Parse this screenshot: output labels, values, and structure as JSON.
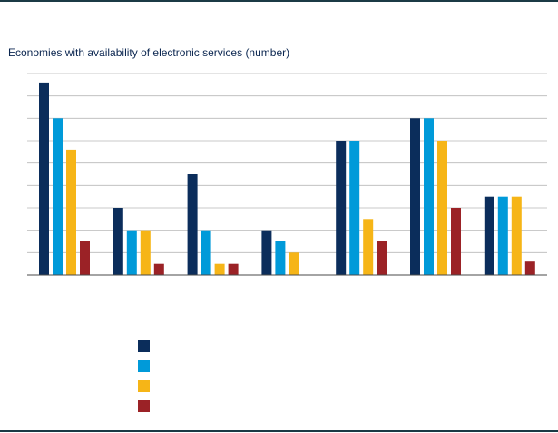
{
  "chart_data": {
    "type": "bar",
    "title": "Economies with availability of electronic services (number)",
    "xlabel": "",
    "ylabel": "",
    "ylim": [
      0,
      90
    ],
    "grid": true,
    "categories": [
      "",
      "",
      "",
      "",
      "",
      "",
      ""
    ],
    "series": [
      {
        "color": "#0b2d5b",
        "values": [
          86,
          30,
          45,
          20,
          60,
          70,
          35
        ]
      },
      {
        "color": "#009ad9",
        "values": [
          70,
          20,
          20,
          15,
          60,
          70,
          35
        ]
      },
      {
        "color": "#f6b517",
        "values": [
          56,
          20,
          5,
          10,
          25,
          60,
          35
        ]
      },
      {
        "color": "#9b2226",
        "values": [
          15,
          5,
          5,
          0,
          15,
          30,
          6
        ]
      }
    ],
    "legend_position": "bottom-left"
  }
}
